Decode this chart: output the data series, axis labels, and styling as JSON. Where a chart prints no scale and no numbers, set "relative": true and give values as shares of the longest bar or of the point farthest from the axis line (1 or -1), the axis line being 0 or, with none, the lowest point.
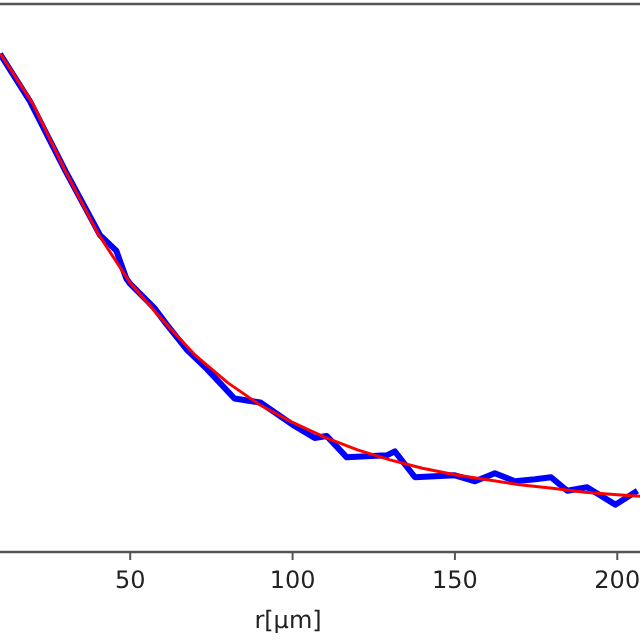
{
  "chart_data": {
    "type": "line",
    "relative": true,
    "xlabel": "r[μm]",
    "xlim": [
      9.9,
      207
    ],
    "xticks": [
      50,
      100,
      150,
      200
    ],
    "grid": false,
    "tick_labels": "x",
    "series": [
      {
        "color": "#0000ff",
        "x": [
          9.9,
          19.1,
          30.2,
          40.7,
          45.7,
          48.8,
          50,
          57.4,
          61.1,
          67.3,
          73.5,
          82.1,
          90.1,
          100.6,
          106.8,
          110.5,
          116.7,
          129,
          131.5,
          137.7,
          150,
          156.2,
          162.3,
          168.5,
          174.7,
          179.6,
          184.6,
          190.7,
          199.4,
          206.2
        ],
        "values": [
          1,
          0.905,
          0.763,
          0.636,
          0.605,
          0.549,
          0.538,
          0.49,
          0.458,
          0.407,
          0.368,
          0.308,
          0.3,
          0.253,
          0.229,
          0.233,
          0.19,
          0.194,
          0.202,
          0.15,
          0.154,
          0.142,
          0.158,
          0.142,
          0.146,
          0.15,
          0.123,
          0.13,
          0.095,
          0.123
        ]
      },
      {
        "type": "line",
        "color": "#ff0000",
        "x": [
          10,
          20,
          30,
          40,
          50,
          60,
          70,
          80,
          90,
          100,
          110,
          120,
          130,
          140,
          150,
          160,
          170,
          180,
          190,
          200,
          207
        ],
        "values": [
          1,
          0.9,
          0.765,
          0.64,
          0.54,
          0.465,
          0.395,
          0.34,
          0.295,
          0.26,
          0.23,
          0.205,
          0.185,
          0.168,
          0.155,
          0.145,
          0.135,
          0.128,
          0.12,
          0.115,
          0.112
        ]
      }
    ]
  }
}
